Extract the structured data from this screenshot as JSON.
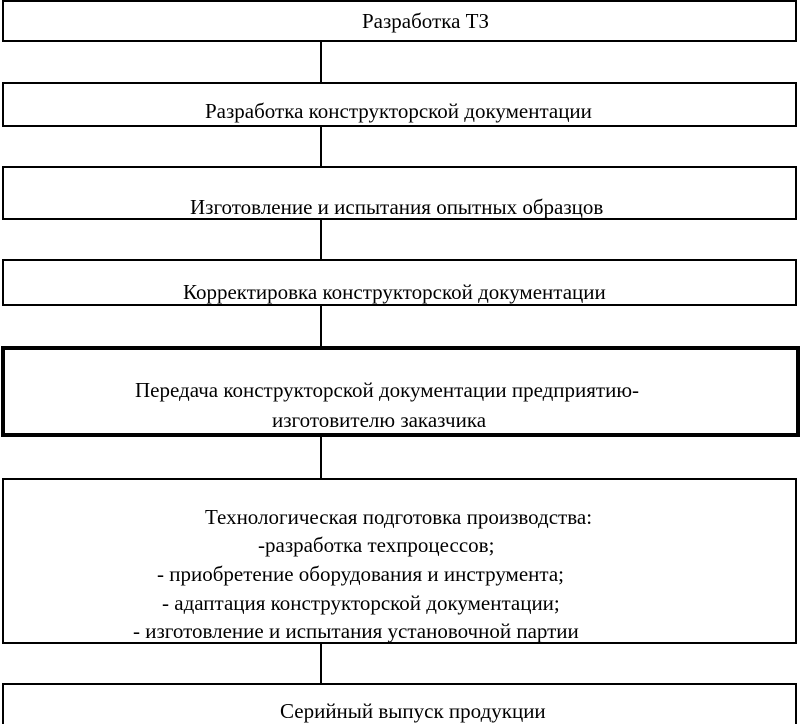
{
  "steps": [
    {
      "lines": [
        "Разработка ТЗ"
      ]
    },
    {
      "lines": [
        "Разработка конструкторской документации"
      ]
    },
    {
      "lines": [
        "Изготовление и испытания опытных образцов"
      ]
    },
    {
      "lines": [
        "Корректировка конструкторской документации"
      ]
    },
    {
      "lines": [
        "Передача конструкторской документации предприятию-",
        "изготовителю заказчика"
      ],
      "emphasized": true
    },
    {
      "lines": [
        "Технологическая подготовка производства:",
        "-разработка техпроцессов;",
        "- приобретение оборудования и инструмента;",
        "- адаптация конструкторской документации;",
        "- изготовление и испытания установочной партии"
      ]
    },
    {
      "lines": [
        "Серийный выпуск продукции"
      ]
    }
  ]
}
